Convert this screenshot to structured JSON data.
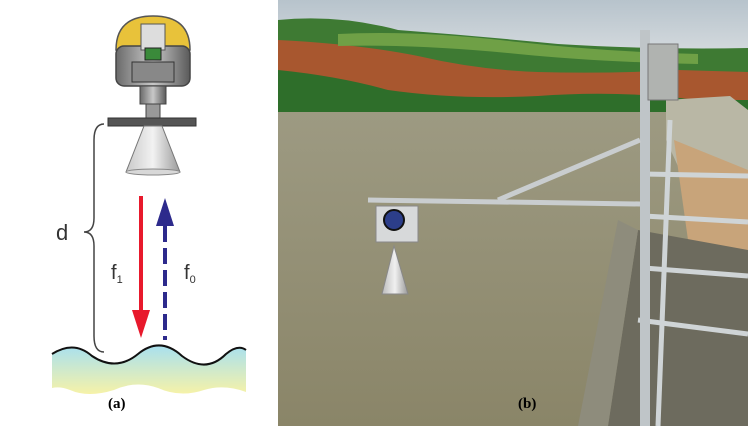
{
  "panel_a": {
    "caption": "(a)",
    "distance_label": "d",
    "reflected_wave_label": "f",
    "reflected_wave_sub": "1",
    "emitted_wave_label": "f",
    "emitted_wave_sub": "0",
    "colors": {
      "reflected_arrow": "#e8192c",
      "emitted_arrow": "#2d2a8c",
      "sensor_cap": "#e8c23a",
      "water_top": "#a8e0ef",
      "water_bottom": "#f6f2a8"
    }
  },
  "panel_b": {
    "caption": "(b)"
  }
}
